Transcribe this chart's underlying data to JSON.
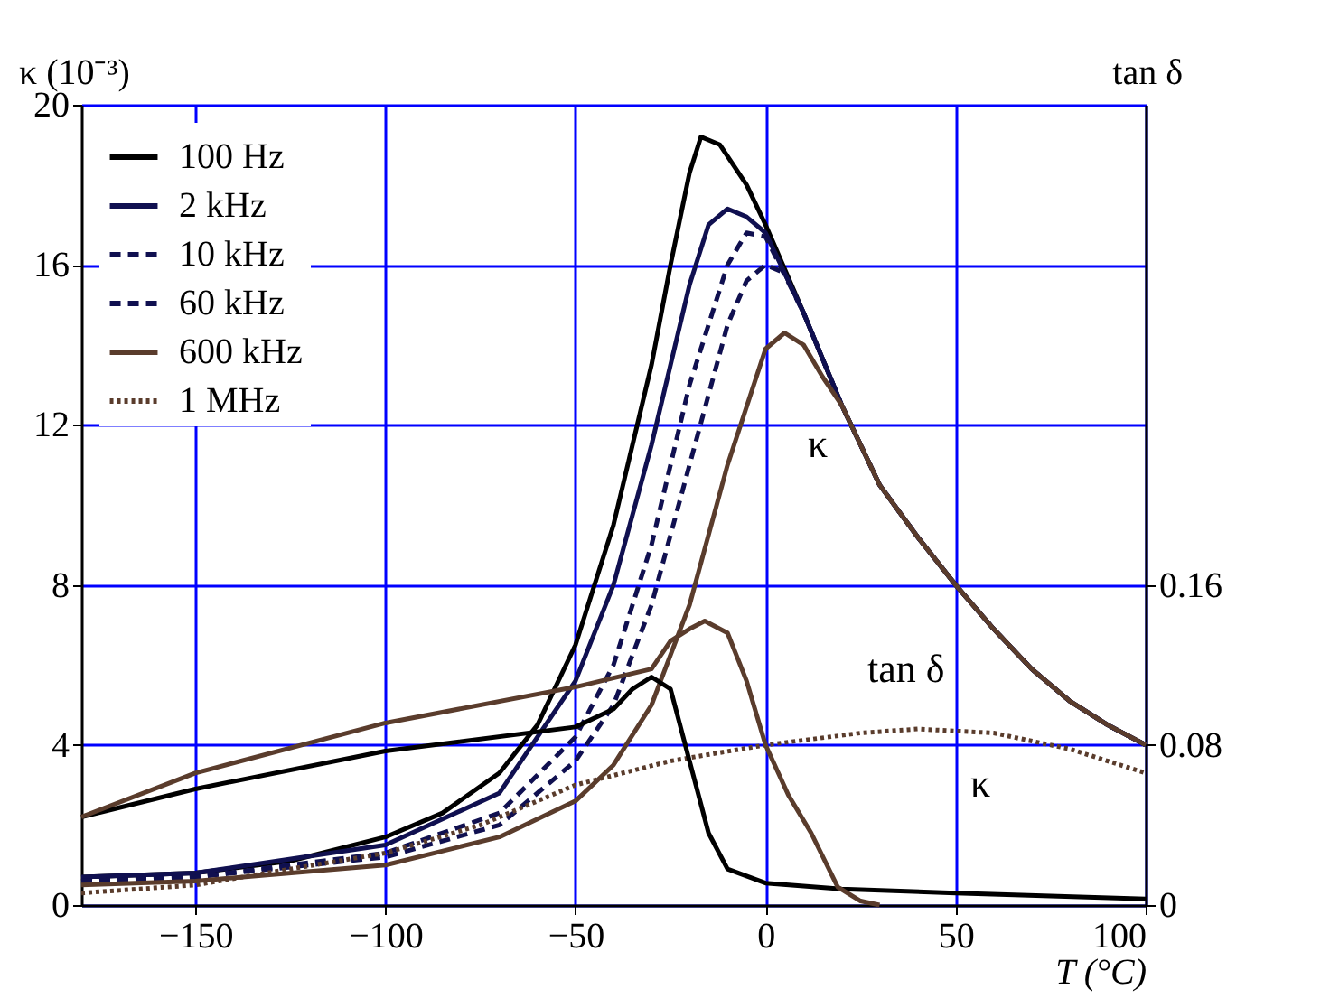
{
  "chart_data": {
    "type": "line",
    "xlabel": "T (°C)",
    "ylabel": "κ (10⁻³)",
    "y2label": "tan δ",
    "xlim": [
      -180,
      100
    ],
    "xticks": [
      -150,
      -100,
      -50,
      0,
      50,
      100
    ],
    "ylim": [
      0,
      20
    ],
    "yticks": [
      0,
      4,
      8,
      12,
      16,
      20
    ],
    "y2lim": [
      0,
      0.4
    ],
    "y2ticks": [
      0,
      0.08,
      0.16
    ],
    "grid": true,
    "legend": "top left",
    "marker": "none",
    "annotations": [
      "κ",
      "tan δ",
      "κ"
    ],
    "series": [
      {
        "name": "100 Hz",
        "color": "#000000",
        "line_style": "solid",
        "x": [
          -180,
          -150,
          -125,
          -100,
          -85,
          -70,
          -60,
          -50,
          -40,
          -30,
          -25,
          -20,
          -17,
          -12,
          -5,
          0,
          10,
          20,
          30,
          40,
          50,
          60,
          70,
          80,
          90,
          100
        ],
        "values": [
          0.7,
          0.8,
          1.1,
          1.7,
          2.3,
          3.3,
          4.5,
          6.5,
          9.5,
          13.5,
          16,
          18.3,
          19.2,
          19,
          18,
          17,
          14.8,
          12.5,
          10.5,
          9.2,
          8,
          6.9,
          5.9,
          5.1,
          4.5,
          4
        ]
      },
      {
        "name": "2 kHz",
        "color": "#101050",
        "line_style": "solid",
        "x": [
          -180,
          -150,
          -100,
          -70,
          -50,
          -40,
          -30,
          -20,
          -15,
          -10,
          -5,
          0,
          10,
          20,
          30,
          40,
          50,
          60,
          70,
          80,
          90,
          100
        ],
        "values": [
          0.7,
          0.8,
          1.5,
          2.8,
          5.6,
          8,
          11.5,
          15.5,
          17,
          17.4,
          17.2,
          16.8,
          14.8,
          12.5,
          10.5,
          9.2,
          8,
          6.9,
          5.9,
          5.1,
          4.5,
          4
        ]
      },
      {
        "name": "10 kHz",
        "color": "#101050",
        "line_style": "dashed",
        "x": [
          -180,
          -150,
          -100,
          -70,
          -50,
          -40,
          -30,
          -20,
          -10,
          -5,
          0,
          10,
          20,
          30,
          40,
          50,
          60,
          70,
          80,
          90,
          100
        ],
        "values": [
          0.6,
          0.7,
          1.3,
          2.3,
          4.2,
          6,
          9,
          13,
          16,
          16.8,
          16.7,
          14.8,
          12.5,
          10.5,
          9.2,
          8,
          6.9,
          5.9,
          5.1,
          4.5,
          4
        ]
      },
      {
        "name": "60 kHz",
        "color": "#101050",
        "line_style": "dashed",
        "x": [
          -180,
          -150,
          -100,
          -70,
          -50,
          -40,
          -30,
          -20,
          -10,
          -5,
          0,
          5,
          10,
          20,
          30,
          40,
          50,
          60,
          70,
          80,
          90,
          100
        ],
        "values": [
          0.6,
          0.7,
          1.2,
          2,
          3.6,
          5,
          7.5,
          11,
          14.5,
          15.6,
          16,
          15.8,
          14.8,
          12.5,
          10.5,
          9.2,
          8,
          6.9,
          5.9,
          5.1,
          4.5,
          4
        ]
      },
      {
        "name": "600 kHz",
        "color": "#5a3c2c",
        "line_style": "solid",
        "x": [
          -180,
          -150,
          -100,
          -70,
          -50,
          -40,
          -30,
          -20,
          -10,
          0,
          5,
          10,
          15,
          20,
          30,
          40,
          50,
          60,
          70,
          80,
          90,
          100
        ],
        "values": [
          0.5,
          0.6,
          1,
          1.7,
          2.6,
          3.5,
          5,
          7.5,
          11,
          13.9,
          14.3,
          14,
          13.2,
          12.5,
          10.5,
          9.2,
          8,
          6.9,
          5.9,
          5.1,
          4.5,
          4
        ]
      },
      {
        "name": "1 MHz",
        "color": "#5a3c2c",
        "line_style": "dotted",
        "x": [
          -180,
          -150,
          -100,
          -75,
          -50,
          -25,
          0,
          25,
          40,
          60,
          80,
          100
        ],
        "values": [
          0.3,
          0.5,
          1.3,
          2,
          3,
          3.6,
          4,
          4.3,
          4.4,
          4.3,
          3.9,
          3.3
        ]
      },
      {
        "color": "#000000",
        "line_style": "solid",
        "axis": "y2",
        "x": [
          -180,
          -150,
          -100,
          -50,
          -40,
          -35,
          -30,
          -25,
          -20,
          -15,
          -10,
          0,
          20,
          50,
          100
        ],
        "values": [
          0.044,
          0.058,
          0.077,
          0.089,
          0.098,
          0.108,
          0.114,
          0.108,
          0.072,
          0.036,
          0.018,
          0.011,
          0.008,
          0.006,
          0.003
        ]
      },
      {
        "color": "#5a3c2c",
        "line_style": "solid",
        "axis": "y2",
        "x": [
          -180,
          -150,
          -100,
          -50,
          -30,
          -25,
          -20,
          -16,
          -10,
          -5,
          0,
          6,
          12,
          19,
          25,
          30
        ],
        "values": [
          0.044,
          0.066,
          0.091,
          0.109,
          0.118,
          0.132,
          0.138,
          0.142,
          0.136,
          0.112,
          0.08,
          0.055,
          0.036,
          0.009,
          0.002,
          0
        ]
      }
    ]
  }
}
